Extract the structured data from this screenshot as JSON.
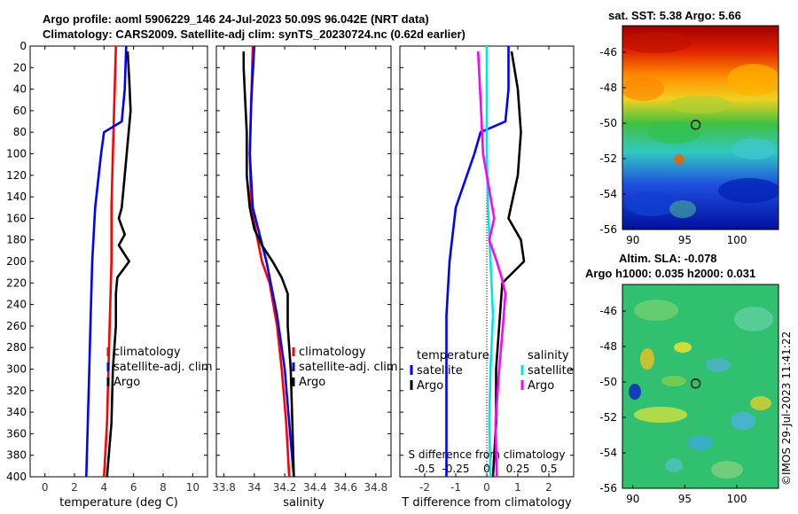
{
  "header": {
    "title_line1": "Argo profile: aoml 5906229_146 24-Jul-2023 50.09S 96.042E (NRT data)",
    "title_line2": "Climatology: CARS2009. Satellite-adj clim: synTS_20230724.nc (0.62d earlier)"
  },
  "sst_map": {
    "title": "sat. SST: 5.38 Argo: 5.66",
    "lat_ticks": [
      "-46",
      "-48",
      "-50",
      "-52",
      "-54",
      "-56"
    ],
    "lon_ticks": [
      "90",
      "95",
      "100"
    ],
    "argo_lon": 96.04,
    "argo_lat": -50.09,
    "lon_range": [
      89,
      104
    ],
    "lat_range": [
      -56,
      -44.5
    ]
  },
  "sla_map": {
    "title_line1": "Altim. SLA: -0.078",
    "title_line2": "Argo h1000: 0.035 h2000: 0.031",
    "lat_ticks": [
      "-46",
      "-48",
      "-50",
      "-52",
      "-54",
      "-56"
    ],
    "lon_ticks": [
      "90",
      "95",
      "100"
    ],
    "argo_lon": 96.04,
    "argo_lat": -50.09,
    "lon_range": [
      89,
      104
    ],
    "lat_range": [
      -56,
      -44.5
    ]
  },
  "watermark": "©IMOS 29-Jul-2023 11:41:22",
  "colors": {
    "climatology": "#ff0000",
    "satellite": "#0000ff",
    "argo": "#000000",
    "sat_salinity": "#00e5e5",
    "argo_salinity": "#ff00ff"
  },
  "chart_data": [
    {
      "type": "line",
      "name": "temperature",
      "xlabel": "temperature (deg C)",
      "ylabel": "",
      "xlim": [
        -1,
        11
      ],
      "ylim": [
        400,
        0
      ],
      "xticks": [
        "0",
        "2",
        "4",
        "6",
        "8",
        "10"
      ],
      "yticks": [
        "0",
        "20",
        "40",
        "60",
        "80",
        "100",
        "120",
        "140",
        "160",
        "180",
        "200",
        "220",
        "240",
        "260",
        "280",
        "300",
        "320",
        "340",
        "360",
        "380",
        "400"
      ],
      "legend": [
        "climatology",
        "satellite-adj. clim",
        "Argo"
      ],
      "series": [
        {
          "name": "climatology",
          "depth": [
            0,
            50,
            100,
            150,
            200,
            250,
            300,
            350,
            400
          ],
          "values": [
            4.8,
            4.7,
            4.6,
            4.5,
            4.5,
            4.4,
            4.3,
            4.2,
            4.0
          ]
        },
        {
          "name": "satellite-adj. clim",
          "depth": [
            0,
            40,
            70,
            80,
            100,
            150,
            200,
            250,
            300,
            350,
            400
          ],
          "values": [
            5.5,
            5.4,
            5.2,
            4.0,
            3.8,
            3.4,
            3.2,
            3.1,
            3.0,
            2.9,
            2.8
          ]
        },
        {
          "name": "Argo",
          "depth": [
            5,
            30,
            60,
            90,
            120,
            150,
            160,
            175,
            185,
            200,
            215,
            230,
            260,
            300,
            350,
            400
          ],
          "values": [
            5.6,
            5.7,
            5.8,
            5.6,
            5.4,
            5.2,
            5.0,
            5.4,
            5.0,
            5.7,
            4.9,
            4.8,
            4.8,
            4.6,
            4.5,
            4.2
          ]
        }
      ]
    },
    {
      "type": "line",
      "name": "salinity",
      "xlabel": "salinity",
      "ylabel": "",
      "xlim": [
        33.75,
        34.9
      ],
      "ylim": [
        400,
        0
      ],
      "xticks": [
        "33.8",
        "34",
        "34.2",
        "34.4",
        "34.6",
        "34.8"
      ],
      "legend": [
        "climatology",
        "satellite-adj. clim",
        "Argo"
      ],
      "series": [
        {
          "name": "climatology",
          "depth": [
            0,
            50,
            100,
            150,
            200,
            220,
            260,
            300,
            350,
            400
          ],
          "values": [
            33.99,
            33.98,
            33.97,
            33.98,
            34.05,
            34.1,
            34.15,
            34.18,
            34.21,
            34.23
          ]
        },
        {
          "name": "satellite-adj. clim",
          "depth": [
            0,
            50,
            100,
            150,
            200,
            250,
            300,
            350,
            400
          ],
          "values": [
            34.0,
            33.98,
            33.97,
            33.99,
            34.08,
            34.15,
            34.2,
            34.23,
            34.26
          ]
        },
        {
          "name": "Argo",
          "depth": [
            5,
            20,
            50,
            80,
            120,
            150,
            170,
            185,
            200,
            215,
            230,
            260,
            300,
            350,
            400
          ],
          "values": [
            33.93,
            33.93,
            33.94,
            33.95,
            33.95,
            33.97,
            34.0,
            34.05,
            34.12,
            34.18,
            34.22,
            34.22,
            34.24,
            34.25,
            34.26
          ]
        }
      ]
    },
    {
      "type": "line",
      "name": "difference",
      "xlabel": "T difference from climatology",
      "xlabel_top": "S difference from climatology",
      "xlim": [
        -2.8,
        2.8
      ],
      "ylim": [
        400,
        0
      ],
      "xticks": [
        "-2",
        "-1",
        "0",
        "1",
        "2"
      ],
      "xticks_top": [
        "-0.5",
        "-0.25",
        "0",
        "0.25",
        "0.5"
      ],
      "legend_temperature": [
        "temperature",
        "satellite",
        "Argo"
      ],
      "legend_salinity": [
        "salinity",
        "satellite",
        "Argo"
      ],
      "series": [
        {
          "name": "T satellite",
          "depth": [
            0,
            40,
            70,
            80,
            100,
            150,
            200,
            250,
            300,
            350,
            400
          ],
          "values": [
            0.7,
            0.7,
            0.6,
            -0.2,
            -0.4,
            -1.0,
            -1.2,
            -1.3,
            -1.3,
            -1.3,
            -1.3
          ]
        },
        {
          "name": "T Argo",
          "depth": [
            5,
            40,
            80,
            120,
            160,
            180,
            200,
            220,
            260,
            300,
            350,
            400
          ],
          "values": [
            0.8,
            1.0,
            1.1,
            1.0,
            0.7,
            1.1,
            1.2,
            0.5,
            0.4,
            0.3,
            0.3,
            0.2
          ]
        },
        {
          "name": "S satellite",
          "depth": [
            0,
            50,
            100,
            150,
            200,
            250,
            300,
            350,
            400
          ],
          "values": [
            0.0,
            0.0,
            0.0,
            0.01,
            0.03,
            0.05,
            0.03,
            0.02,
            0.03
          ]
        },
        {
          "name": "S Argo",
          "depth": [
            5,
            50,
            100,
            140,
            160,
            180,
            200,
            215,
            230,
            260,
            300,
            350,
            400
          ],
          "values": [
            -0.07,
            -0.05,
            -0.03,
            0.03,
            0.06,
            0.02,
            0.08,
            0.12,
            0.15,
            0.13,
            0.1,
            0.07,
            0.08
          ]
        }
      ]
    }
  ]
}
